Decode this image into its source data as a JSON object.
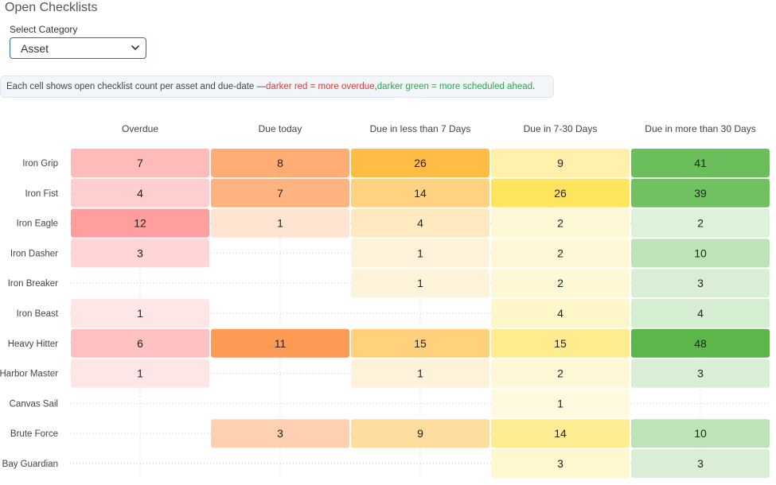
{
  "page": {
    "title": "Open Checklists",
    "select_label": "Select Category",
    "select_value": "Asset",
    "note": {
      "prefix": "Each cell shows open checklist count per asset and due-date — ",
      "red": "darker red = more overdue",
      "sep": ", ",
      "green": "darker green = more scheduled ahead",
      "suffix": "."
    }
  },
  "chart_data": {
    "type": "heatmap",
    "x": [
      "Overdue",
      "Due today",
      "Due in less than 7 Days",
      "Due in 7-30 Days",
      "Due in more than 30 Days"
    ],
    "y": [
      "Iron Grip",
      "Iron Fist",
      "Iron Eagle",
      "Iron Dasher",
      "Iron Breaker",
      "Iron Beast",
      "Heavy Hitter",
      "Harbor Master",
      "Canvas Sail",
      "Brute Force",
      "Bay Guardian"
    ],
    "values": [
      [
        7,
        8,
        26,
        9,
        41
      ],
      [
        4,
        7,
        14,
        26,
        39
      ],
      [
        12,
        1,
        4,
        2,
        2
      ],
      [
        3,
        null,
        1,
        2,
        10
      ],
      [
        null,
        null,
        1,
        2,
        3
      ],
      [
        1,
        null,
        null,
        4,
        4
      ],
      [
        6,
        11,
        15,
        15,
        48
      ],
      [
        1,
        null,
        1,
        2,
        3
      ],
      [
        null,
        null,
        null,
        1,
        null
      ],
      [
        null,
        3,
        9,
        14,
        10
      ],
      [
        null,
        null,
        null,
        3,
        3
      ]
    ],
    "column_colors": [
      "#ff9e9e",
      "#ff9a55",
      "#ffbd45",
      "#ffe45e",
      "#5cb74a"
    ],
    "grid": true,
    "legend": "none"
  }
}
